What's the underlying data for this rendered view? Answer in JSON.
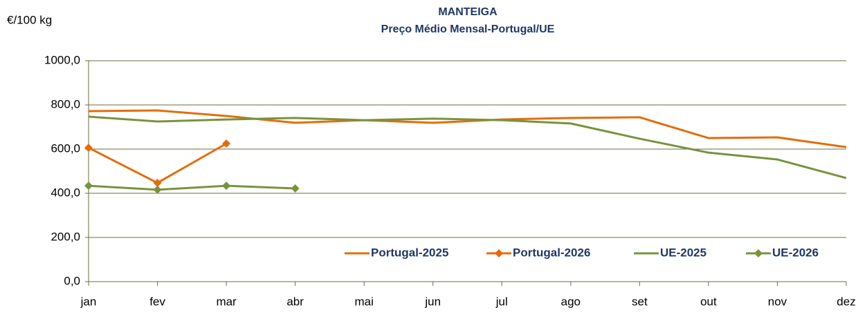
{
  "chart_data": {
    "type": "line",
    "title": "MANTEIGA",
    "subtitle": "Preço Médio Mensal-Portugal/UE",
    "y_label": "€/100 kg",
    "categories": [
      "jan",
      "fev",
      "mar",
      "abr",
      "mai",
      "jun",
      "jul",
      "ago",
      "set",
      "out",
      "nov",
      "dez"
    ],
    "series": [
      {
        "name": "Portugal-2025",
        "color": "#e46c0a",
        "marker": "none",
        "values": [
          772,
          775,
          750,
          719,
          731,
          719,
          734,
          741,
          744,
          650,
          653,
          609
        ]
      },
      {
        "name": "Portugal-2026",
        "color": "#e46c0a",
        "marker": "diamond",
        "values": [
          606,
          447,
          625,
          null,
          null,
          null,
          null,
          null,
          null,
          null,
          null,
          null
        ]
      },
      {
        "name": "UE-2025",
        "color": "#77933c",
        "marker": "none",
        "values": [
          747,
          725,
          734,
          741,
          731,
          738,
          731,
          716,
          647,
          584,
          553,
          469
        ]
      },
      {
        "name": "UE-2026",
        "color": "#77933c",
        "marker": "diamond",
        "values": [
          434,
          416,
          434,
          422,
          null,
          null,
          null,
          null,
          null,
          null,
          null,
          null
        ]
      }
    ],
    "ylim": [
      0,
      1000
    ],
    "yticks": [
      {
        "value": 0,
        "label": "0,0"
      },
      {
        "value": 200,
        "label": "200,0"
      },
      {
        "value": 400,
        "label": "400,0"
      },
      {
        "value": 600,
        "label": "600,0"
      },
      {
        "value": 800,
        "label": "800,0"
      },
      {
        "value": 1000,
        "label": "1000,0"
      }
    ],
    "grid": true,
    "legend": "bottom-right"
  }
}
